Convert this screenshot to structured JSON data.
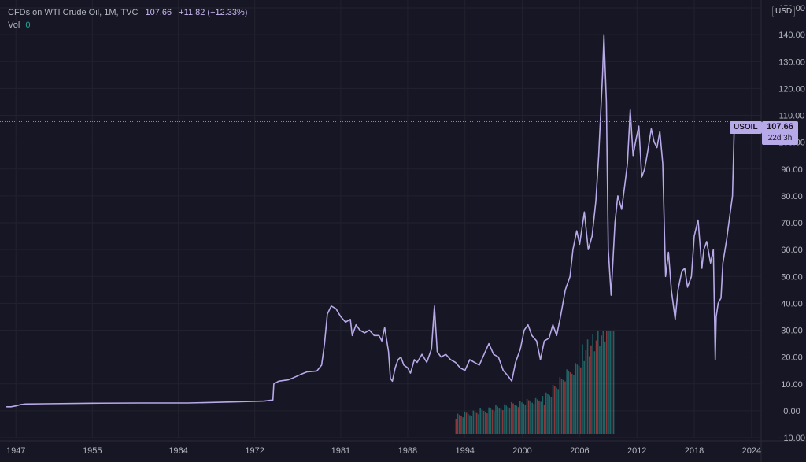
{
  "legend": {
    "title": "CFDs on WTI Crude Oil, 1M, TVC",
    "last": "107.66",
    "change": "+11.82 (+12.33%)",
    "vol_label": "Vol",
    "vol_value": "0"
  },
  "currency": "USD",
  "price_tag": {
    "symbol": "USOIL",
    "price": "107.66",
    "countdown": "22d 3h"
  },
  "colors": {
    "background": "#161624",
    "line": "#b8a9e8",
    "grid": "#22222f",
    "vol_up": "#26a69a",
    "vol_down": "#ef5350"
  },
  "chart_data": {
    "type": "line",
    "title": "CFDs on WTI Crude Oil, 1M, TVC",
    "xlabel": "",
    "ylabel": "",
    "ylim": [
      -10,
      150
    ],
    "yticks": [
      -10,
      0,
      10,
      20,
      30,
      40,
      50,
      60,
      70,
      80,
      90,
      100,
      110,
      120,
      130,
      140,
      150
    ],
    "ytick_labels": [
      "−10.00",
      "0.00",
      "10.00",
      "20.00",
      "30.00",
      "40.00",
      "50.00",
      "60.00",
      "70.00",
      "80.00",
      "90.00",
      "100.00",
      "110.00",
      "120.00",
      "130.00",
      "140.00",
      "150.00"
    ],
    "xlim": [
      1945.5,
      2025
    ],
    "xticks": [
      1947,
      1955,
      1964,
      1972,
      1981,
      1988,
      1994,
      2000,
      2006,
      2012,
      2018,
      2024
    ],
    "last_price": 107.66,
    "series": [
      {
        "x": [
          1946.0,
          1946.5,
          1947.0,
          1947.5,
          1948.0,
          1950.0,
          1955.0,
          1960.0,
          1965.0,
          1970.0,
          1973.0,
          1973.9,
          1974.0,
          1974.5,
          1975.5,
          1976.0,
          1976.8,
          1977.5,
          1978.5,
          1979.0,
          1979.3,
          1979.6,
          1980.0,
          1980.5,
          1981.0,
          1981.5,
          1982.0,
          1982.2,
          1982.6,
          1983.0,
          1983.5,
          1984.0,
          1984.5,
          1985.0,
          1985.3,
          1985.6,
          1986.0,
          1986.2,
          1986.4,
          1986.7,
          1987.0,
          1987.3,
          1987.6,
          1988.0,
          1988.3,
          1988.7,
          1989.0,
          1989.5,
          1990.0,
          1990.5,
          1990.8,
          1991.1,
          1991.5,
          1992.0,
          1992.5,
          1993.0,
          1993.5,
          1994.0,
          1994.5,
          1995.0,
          1995.5,
          1996.0,
          1996.5,
          1997.0,
          1997.5,
          1998.0,
          1998.5,
          1998.9,
          1999.3,
          1999.8,
          2000.2,
          2000.6,
          2001.0,
          2001.5,
          2001.9,
          2002.3,
          2002.8,
          2003.2,
          2003.6,
          2004.0,
          2004.5,
          2005.0,
          2005.3,
          2005.7,
          2006.0,
          2006.5,
          2006.9,
          2007.3,
          2007.7,
          2008.0,
          2008.4,
          2008.55,
          2008.8,
          2009.0,
          2009.3,
          2009.7,
          2010.0,
          2010.4,
          2010.8,
          2011.0,
          2011.3,
          2011.6,
          2011.9,
          2012.2,
          2012.5,
          2012.8,
          2013.1,
          2013.5,
          2013.8,
          2014.1,
          2014.4,
          2014.7,
          2015.0,
          2015.3,
          2015.6,
          2016.0,
          2016.3,
          2016.7,
          2017.0,
          2017.3,
          2017.7,
          2018.0,
          2018.4,
          2018.8,
          2019.0,
          2019.3,
          2019.7,
          2020.0,
          2020.2,
          2020.3,
          2020.5,
          2020.8,
          2021.0,
          2021.4,
          2021.7,
          2022.0,
          2022.2
        ],
        "values": [
          1.5,
          1.5,
          1.8,
          2.3,
          2.5,
          2.6,
          2.8,
          2.9,
          2.9,
          3.3,
          3.6,
          4.0,
          10.0,
          11.0,
          11.5,
          12.2,
          13.5,
          14.5,
          14.8,
          17.0,
          25.0,
          36.0,
          39.0,
          38.0,
          35.0,
          33.0,
          34.0,
          28.0,
          32.0,
          30.0,
          29.0,
          30.0,
          28.0,
          28.0,
          26.0,
          31.0,
          22.0,
          12.0,
          11.0,
          16.0,
          19.0,
          20.0,
          17.0,
          16.0,
          14.0,
          19.0,
          18.0,
          21.0,
          18.0,
          23.0,
          39.0,
          22.0,
          20.0,
          21.0,
          19.0,
          18.0,
          16.0,
          15.0,
          19.0,
          18.0,
          17.0,
          21.0,
          25.0,
          21.0,
          20.0,
          15.0,
          13.0,
          11.0,
          18.0,
          23.0,
          30.0,
          32.0,
          28.0,
          26.0,
          19.0,
          26.0,
          27.0,
          32.0,
          28.0,
          35.0,
          45.0,
          50.0,
          60.0,
          67.0,
          62.0,
          74.0,
          60.0,
          65.0,
          78.0,
          95.0,
          125.0,
          140.0,
          115.0,
          60.0,
          43.0,
          70.0,
          80.0,
          75.0,
          86.0,
          92.0,
          112.0,
          95.0,
          101.0,
          106.0,
          87.0,
          90.0,
          96.0,
          105.0,
          100.0,
          98.0,
          104.0,
          92.0,
          50.0,
          59.0,
          45.0,
          34.0,
          45.0,
          52.0,
          53.0,
          46.0,
          50.0,
          65.0,
          71.0,
          53.0,
          60.0,
          63.0,
          55.0,
          60.0,
          19.0,
          35.0,
          40.0,
          42.0,
          55.0,
          64.0,
          72.0,
          80.0,
          107.66
        ]
      }
    ],
    "volume": {
      "start": 1993.0,
      "end": 2009.5,
      "approx_relative_heights": [
        0.1,
        0.25,
        0.4,
        0.7,
        1.0
      ]
    }
  }
}
